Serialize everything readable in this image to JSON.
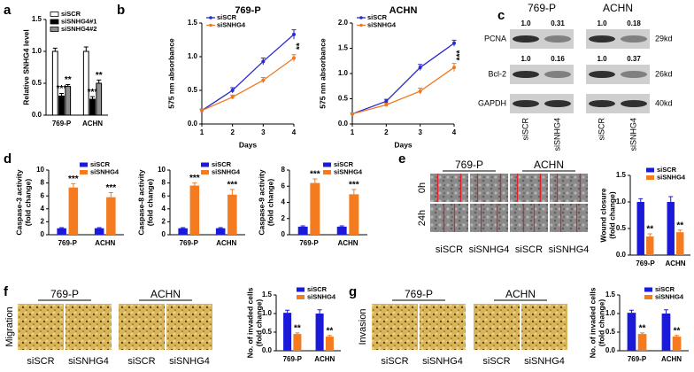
{
  "panel_labels": [
    "a",
    "b",
    "c",
    "d",
    "e",
    "f",
    "g"
  ],
  "chart_data": [
    {
      "type": "bar",
      "ylabel": [
        "Relative SNHG4 level"
      ],
      "categories": [
        "769-P",
        "ACHN"
      ],
      "edgecolor": "#000000",
      "legend": "upper left",
      "ylim": [
        0,
        1.5
      ],
      "yticks": [
        {
          "value": 0,
          "label": "0.0"
        },
        {
          "value": 0.5,
          "label": "0.5"
        },
        {
          "value": 1,
          "label": "1.0"
        },
        {
          "value": 1.5,
          "label": "1.5"
        }
      ],
      "series": [
        {
          "name": "siSCR",
          "color": "#ffffff",
          "values": [
            1,
            1
          ],
          "errors": [
            0.05,
            0.07
          ]
        },
        {
          "name": "siSNHG4#1",
          "color": "#000000",
          "values": [
            0.3,
            0.25
          ],
          "errors": [
            0.04,
            0.04
          ],
          "annotations": [
            "***",
            "***"
          ]
        },
        {
          "name": "siSNHG4#2",
          "color": "#909090",
          "values": [
            0.45,
            0.5
          ],
          "errors": [
            0.03,
            0.05
          ],
          "annotations": [
            "**",
            "**"
          ]
        }
      ]
    },
    {
      "type": "line",
      "title": "769-P",
      "xlabel": "Days",
      "ylabel": [
        "575 nm absorbance"
      ],
      "legend": "upper left",
      "annotation": "**",
      "x": [
        1,
        2,
        3,
        4
      ],
      "xlim": [
        1,
        4
      ],
      "xticks": [
        1,
        2,
        3,
        4
      ],
      "ylim": [
        0,
        1.5
      ],
      "yticks": [
        {
          "value": 0,
          "label": "0.0"
        },
        {
          "value": 0.5,
          "label": "0.5"
        },
        {
          "value": 1,
          "label": "1.0"
        },
        {
          "value": 1.5,
          "label": "1.5"
        }
      ],
      "series": [
        {
          "name": "siSCR",
          "color": "#2a2ad0",
          "values": [
            0.2,
            0.5,
            0.93,
            1.33
          ],
          "errors": [
            0.02,
            0.04,
            0.05,
            0.07
          ]
        },
        {
          "name": "siSNHG4",
          "color": "#f07820",
          "values": [
            0.2,
            0.4,
            0.65,
            0.98
          ],
          "errors": [
            0.02,
            0.03,
            0.04,
            0.05
          ]
        }
      ]
    },
    {
      "type": "line",
      "title": "ACHN",
      "xlabel": "Days",
      "ylabel": [
        "575 nm absorbance"
      ],
      "legend": "upper left",
      "annotation": "***",
      "x": [
        1,
        2,
        3,
        4
      ],
      "xlim": [
        1,
        4
      ],
      "xticks": [
        1,
        2,
        3,
        4
      ],
      "ylim": [
        0,
        2
      ],
      "yticks": [
        {
          "value": 0,
          "label": "0.0"
        },
        {
          "value": 0.5,
          "label": "0.5"
        },
        {
          "value": 1,
          "label": "1.0"
        },
        {
          "value": 1.5,
          "label": "1.5"
        },
        {
          "value": 2,
          "label": "2.0"
        }
      ],
      "series": [
        {
          "name": "siSCR",
          "color": "#2a2ad0",
          "values": [
            0.2,
            0.45,
            1.12,
            1.6
          ],
          "errors": [
            0.02,
            0.04,
            0.06,
            0.06
          ]
        },
        {
          "name": "siSNHG4",
          "color": "#f07820",
          "values": [
            0.2,
            0.38,
            0.65,
            1.12
          ],
          "errors": [
            0.02,
            0.03,
            0.06,
            0.08
          ]
        }
      ]
    },
    {
      "type": "bar",
      "ylabel": [
        "Caspase-3 activity",
        "(fold change)"
      ],
      "categories": [
        "769-P",
        "ACHN"
      ],
      "legend": "upper right",
      "ylim": [
        0,
        10
      ],
      "yticks": [
        0,
        2,
        4,
        6,
        8,
        10
      ],
      "series": [
        {
          "name": "siSCR",
          "color": "#1a1ad8",
          "values": [
            1,
            1
          ],
          "errors": [
            0.1,
            0.1
          ]
        },
        {
          "name": "siSNHG4",
          "color": "#f47b20",
          "values": [
            7.3,
            5.8
          ],
          "errors": [
            0.6,
            0.7
          ],
          "annotations": [
            "***",
            "***"
          ]
        }
      ]
    },
    {
      "type": "bar",
      "ylabel": [
        "Caspase-8 activity",
        "(fold change)"
      ],
      "categories": [
        "769-P",
        "ACHN"
      ],
      "legend": "upper right",
      "ylim": [
        0,
        10
      ],
      "yticks": [
        0,
        2,
        4,
        6,
        8,
        10
      ],
      "series": [
        {
          "name": "siSCR",
          "color": "#1a1ad8",
          "values": [
            1,
            1
          ],
          "errors": [
            0.1,
            0.1
          ]
        },
        {
          "name": "siSNHG4",
          "color": "#f47b20",
          "values": [
            7.6,
            6.2
          ],
          "errors": [
            0.4,
            0.8
          ],
          "annotations": [
            "***",
            "***"
          ]
        }
      ]
    },
    {
      "type": "bar",
      "ylabel": [
        "Caspase-9 activity",
        "(fold change)"
      ],
      "categories": [
        "769-P",
        "ACHN"
      ],
      "legend": "upper right",
      "ylim": [
        0,
        8
      ],
      "yticks": [
        0,
        2,
        4,
        6,
        8
      ],
      "series": [
        {
          "name": "siSCR",
          "color": "#1a1ad8",
          "values": [
            1,
            1
          ],
          "errors": [
            0.1,
            0.1
          ]
        },
        {
          "name": "siSNHG4",
          "color": "#f47b20",
          "values": [
            6.4,
            5
          ],
          "errors": [
            0.5,
            0.6
          ],
          "annotations": [
            "***",
            "***"
          ]
        }
      ]
    },
    {
      "type": "bar",
      "ylabel": [
        "Wound closure",
        "(fold change)"
      ],
      "categories": [
        "769-P",
        "ACHN"
      ],
      "legend": "upper right",
      "ylim": [
        0,
        1.5
      ],
      "yticks": [
        {
          "value": 0,
          "label": "0.0"
        },
        {
          "value": 0.5,
          "label": "0.5"
        },
        {
          "value": 1,
          "label": "1.0"
        },
        {
          "value": 1.5,
          "label": "1.5"
        }
      ],
      "series": [
        {
          "name": "siSCR",
          "color": "#1a1ad8",
          "values": [
            1,
            1
          ],
          "errors": [
            0.06,
            0.1
          ]
        },
        {
          "name": "siSNHG4",
          "color": "#f47b20",
          "values": [
            0.35,
            0.43
          ],
          "errors": [
            0.05,
            0.04
          ],
          "annotations": [
            "**",
            "**"
          ]
        }
      ]
    },
    {
      "type": "bar",
      "ylabel": [
        "No. of invaded cells",
        "(fold change)"
      ],
      "categories": [
        "769-P",
        "ACHN"
      ],
      "legend": "upper right",
      "ylim": [
        0,
        1.5
      ],
      "yticks": [
        {
          "value": 0,
          "label": "0.0"
        },
        {
          "value": 0.5,
          "label": "0.5"
        },
        {
          "value": 1,
          "label": "1.0"
        },
        {
          "value": 1.5,
          "label": "1.5"
        }
      ],
      "series": [
        {
          "name": "siSCR",
          "color": "#1a1ad8",
          "values": [
            1.02,
            1
          ],
          "errors": [
            0.07,
            0.1
          ]
        },
        {
          "name": "siSNHG4",
          "color": "#f47b20",
          "values": [
            0.45,
            0.38
          ],
          "errors": [
            0.03,
            0.03
          ],
          "annotations": [
            "**",
            "**"
          ]
        }
      ]
    },
    {
      "type": "bar",
      "ylabel": [
        "No. of invaded cells",
        "(fold change)"
      ],
      "categories": [
        "769-P",
        "ACHN"
      ],
      "legend": "upper right",
      "ylim": [
        0,
        1.5
      ],
      "yticks": [
        {
          "value": 0,
          "label": "0.0"
        },
        {
          "value": 0.5,
          "label": "0.5"
        },
        {
          "value": 1,
          "label": "1.0"
        },
        {
          "value": 1.5,
          "label": "1.5"
        }
      ],
      "series": [
        {
          "name": "siSCR",
          "color": "#1a1ad8",
          "values": [
            1.02,
            1
          ],
          "errors": [
            0.07,
            0.1
          ]
        },
        {
          "name": "siSNHG4",
          "color": "#f47b20",
          "values": [
            0.45,
            0.38
          ],
          "errors": [
            0.03,
            0.03
          ],
          "annotations": [
            "**",
            "**"
          ]
        }
      ]
    }
  ],
  "blot": {
    "groups": [
      "769-P",
      "ACHN"
    ],
    "lanes": [
      "siSCR",
      "siSNHG4",
      "siSCR",
      "siSNHG4"
    ],
    "rows": [
      {
        "name": "PCNA",
        "ratios": [
          "1.0",
          "0.31",
          "1.0",
          "0.18"
        ],
        "size": "29kd"
      },
      {
        "name": "Bcl-2",
        "ratios": [
          "1.0",
          "0.16",
          "1.0",
          "0.37"
        ],
        "size": "26kd"
      },
      {
        "name": "GAPDH",
        "size": "40kd"
      }
    ]
  },
  "images": {
    "e": {
      "groups": [
        "769-P",
        "ACHN"
      ],
      "rows": [
        "0h",
        "24h"
      ],
      "lanes": [
        "siSCR",
        "siSNHG4",
        "siSCR",
        "siSNHG4"
      ]
    },
    "f": {
      "side": "Migration",
      "groups": [
        "769-P",
        "ACHN"
      ],
      "lanes": [
        "siSCR",
        "siSNHG4",
        "siSCR",
        "siSNHG4"
      ]
    },
    "g": {
      "side": "Invasion",
      "groups": [
        "769-P",
        "ACHN"
      ],
      "lanes": [
        "siSCR",
        "siSNHG4",
        "siSCR",
        "siSNHG4"
      ]
    }
  }
}
